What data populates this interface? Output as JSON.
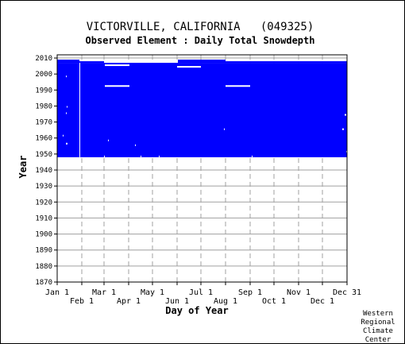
{
  "chart_data": {
    "type": "heatmap",
    "title": "VICTORVILLE, CALIFORNIA   (049325)",
    "subtitle": "Observed Element : Daily Total Snowdepth",
    "xlabel": "Day of Year",
    "ylabel": "Year",
    "x_range": [
      1,
      366
    ],
    "ylim": [
      1870,
      2012
    ],
    "y_ticks": [
      1870,
      1880,
      1890,
      1900,
      1910,
      1920,
      1930,
      1940,
      1950,
      1960,
      1970,
      1980,
      1990,
      2000,
      2010
    ],
    "x_ticks_top": [
      {
        "label": "Jan 1",
        "day": 1
      },
      {
        "label": "Mar 1",
        "day": 60
      },
      {
        "label": "May 1",
        "day": 121
      },
      {
        "label": "Jul 1",
        "day": 182
      },
      {
        "label": "Sep 1",
        "day": 244
      },
      {
        "label": "Nov 1",
        "day": 305
      },
      {
        "label": "Dec 31",
        "day": 366
      }
    ],
    "x_ticks_bottom": [
      {
        "label": "Feb 1",
        "day": 32
      },
      {
        "label": "Apr 1",
        "day": 91
      },
      {
        "label": "Jun 1",
        "day": 152
      },
      {
        "label": "Aug 1",
        "day": 213
      },
      {
        "label": "Oct 1",
        "day": 274
      },
      {
        "label": "Dec 1",
        "day": 335
      }
    ],
    "grid": true,
    "data_color": "#0000ff",
    "data_blocks": [
      {
        "day_start": 1,
        "day_end": 366,
        "year_start": 1948,
        "year_end": 2007
      },
      {
        "day_start": 1,
        "day_end": 29,
        "year_start": 2007,
        "year_end": 2009
      },
      {
        "day_start": 29,
        "day_end": 60,
        "year_start": 2007,
        "year_end": 2008
      },
      {
        "day_start": 153,
        "day_end": 213,
        "year_start": 2007,
        "year_end": 2009
      },
      {
        "day_start": 213,
        "day_end": 274,
        "year_start": 2007,
        "year_end": 2008
      },
      {
        "day_start": 274,
        "day_end": 366,
        "year_start": 2007,
        "year_end": 2008
      }
    ],
    "gaps": [
      {
        "day_start": 61,
        "day_end": 92,
        "year_start": 2005,
        "year_end": 2006
      },
      {
        "day_start": 61,
        "day_end": 92,
        "year_start": 1992,
        "year_end": 1993
      },
      {
        "day_start": 152,
        "day_end": 182,
        "year_start": 2004,
        "year_end": 2005
      },
      {
        "day_start": 213,
        "day_end": 244,
        "year_start": 1992,
        "year_end": 1993
      },
      {
        "day_start": 29,
        "day_end": 30,
        "year_start": 1948,
        "year_end": 2007
      },
      {
        "day_start": 12,
        "day_end": 13,
        "year_start": 1998,
        "year_end": 1999
      },
      {
        "day_start": 13,
        "day_end": 14,
        "year_start": 1979,
        "year_end": 1980
      },
      {
        "day_start": 12,
        "day_end": 13,
        "year_start": 1975,
        "year_end": 1976
      },
      {
        "day_start": 8,
        "day_end": 9,
        "year_start": 1961,
        "year_end": 1962
      },
      {
        "day_start": 12,
        "day_end": 14,
        "year_start": 1956,
        "year_end": 1957
      },
      {
        "day_start": 65,
        "day_end": 66,
        "year_start": 1958,
        "year_end": 1959
      },
      {
        "day_start": 99,
        "day_end": 100,
        "year_start": 1955,
        "year_end": 1956
      },
      {
        "day_start": 211,
        "day_end": 212,
        "year_start": 1965,
        "year_end": 1966
      },
      {
        "day_start": 360,
        "day_end": 362,
        "year_start": 1965,
        "year_end": 1966
      },
      {
        "day_start": 363,
        "day_end": 365,
        "year_start": 1974,
        "year_end": 1975
      },
      {
        "day_start": 365,
        "day_end": 366,
        "year_start": 1951,
        "year_end": 1952
      },
      {
        "day_start": 60,
        "day_end": 61,
        "year_start": 1948,
        "year_end": 1949
      },
      {
        "day_start": 106,
        "day_end": 107,
        "year_start": 1948,
        "year_end": 1949
      },
      {
        "day_start": 129,
        "day_end": 130,
        "year_start": 1948,
        "year_end": 1949
      },
      {
        "day_start": 246,
        "day_end": 247,
        "year_start": 1948,
        "year_end": 1949
      }
    ]
  },
  "credit": [
    "Western",
    "Regional",
    "Climate",
    "Center"
  ]
}
